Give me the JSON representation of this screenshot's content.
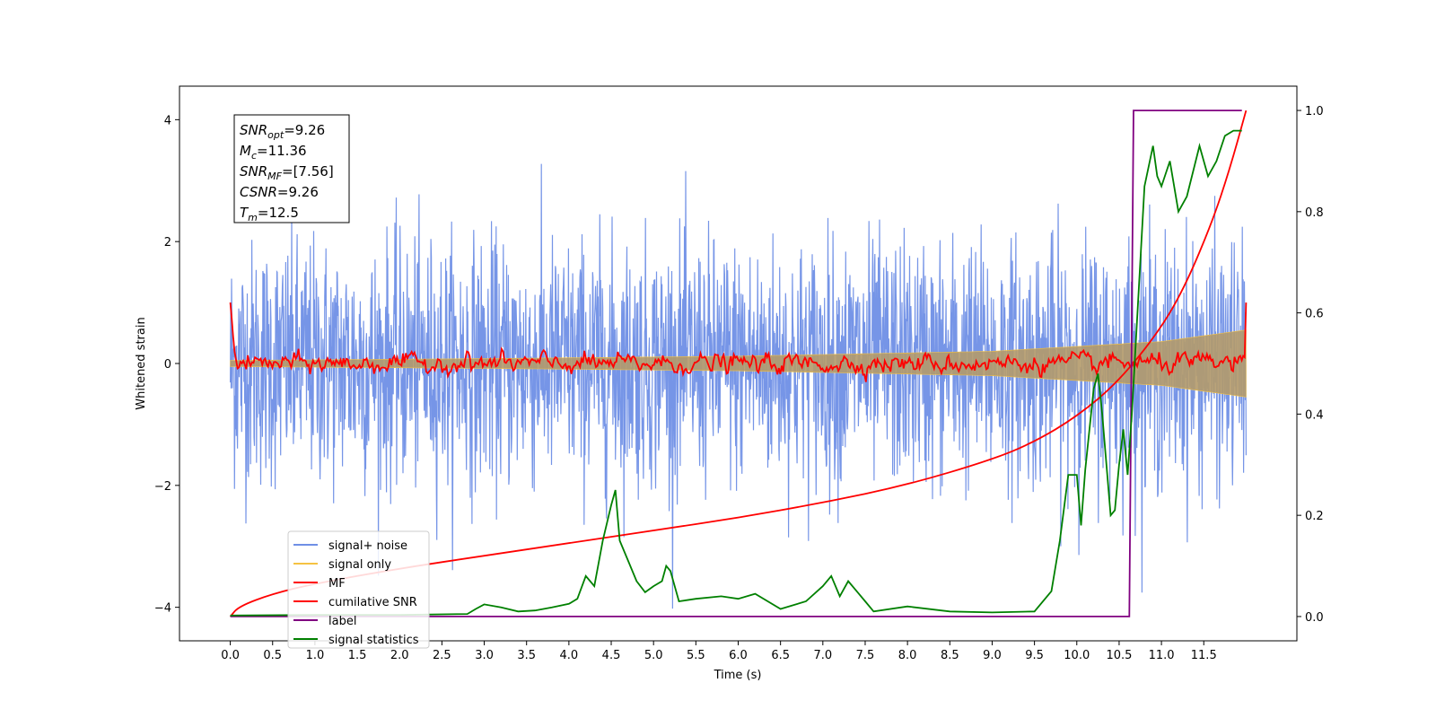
{
  "chart_data": {
    "type": "line",
    "title": "",
    "xlabel": "Time (s)",
    "ylabel": "Whitened strain",
    "y2label": "",
    "xlim": [
      -0.6,
      12.6
    ],
    "ylim": [
      -4.55,
      4.55
    ],
    "y2lim": [
      -0.048,
      1.048
    ],
    "xticks": [
      "0.0",
      "0.5",
      "1.0",
      "1.5",
      "2.0",
      "2.5",
      "3.0",
      "3.5",
      "4.0",
      "4.5",
      "5.0",
      "5.5",
      "6.0",
      "6.5",
      "7.0",
      "7.5",
      "8.0",
      "8.5",
      "9.0",
      "9.5",
      "10.0",
      "10.5",
      "11.0",
      "11.5"
    ],
    "yticks": [
      "−4",
      "−2",
      "0",
      "2",
      "4"
    ],
    "y2ticks": [
      "0.0",
      "0.2",
      "0.4",
      "0.6",
      "0.8",
      "1.0"
    ],
    "grid": false,
    "legend_position": "lower-left",
    "annotation": {
      "lines": [
        {
          "sym": "SNR",
          "sub": "opt",
          "val": "=9.26"
        },
        {
          "sym": "M",
          "sub": "c",
          "val": "=11.36"
        },
        {
          "sym": "SNR",
          "sub": "MF",
          "val": "=[7.56]"
        },
        {
          "sym": "CSNR",
          "sub": "",
          "val": "=9.26"
        },
        {
          "sym": "T",
          "sub": "m",
          "val": "=12.5"
        }
      ]
    },
    "series": [
      {
        "name": "signal+ noise",
        "color": "#6f8fe6",
        "axis": "left",
        "note_stats": {
          "mean": 0,
          "std": 1,
          "tmin": 0,
          "tmax": 12
        }
      },
      {
        "name": "signal only",
        "color": "#f5c242",
        "axis": "left",
        "envelope": {
          "t": [
            0,
            3,
            6,
            9,
            11,
            12
          ],
          "amp": [
            0.05,
            0.08,
            0.12,
            0.2,
            0.36,
            0.55
          ]
        }
      },
      {
        "name": "MF",
        "color": "#ff0000",
        "axis": "left",
        "start_value": 1.0,
        "end_value": 1.0
      },
      {
        "name": "cumilative SNR",
        "color": "#ff0000",
        "axis": "right",
        "x": [
          0.0,
          0.1,
          0.5,
          1.0,
          2.0,
          3.0,
          4.0,
          5.0,
          6.0,
          7.0,
          8.0,
          9.0,
          9.5,
          10.0,
          10.5,
          11.0,
          11.3,
          11.6,
          11.8,
          12.0
        ],
        "y": [
          0.0,
          0.02,
          0.045,
          0.065,
          0.095,
          0.12,
          0.145,
          0.17,
          0.195,
          0.225,
          0.26,
          0.31,
          0.345,
          0.395,
          0.465,
          0.57,
          0.66,
          0.78,
          0.88,
          1.0
        ]
      },
      {
        "name": "label",
        "color": "#800080",
        "axis": "right",
        "x": [
          0.0,
          10.62,
          10.67,
          11.95
        ],
        "y": [
          0.0,
          0.0,
          1.0,
          1.0
        ]
      },
      {
        "name": "signal statistics",
        "color": "#008000",
        "axis": "right",
        "x": [
          0.0,
          1.0,
          2.0,
          2.8,
          2.9,
          3.0,
          3.2,
          3.4,
          3.6,
          3.8,
          4.0,
          4.1,
          4.2,
          4.3,
          4.4,
          4.5,
          4.55,
          4.6,
          4.7,
          4.8,
          4.9,
          5.0,
          5.1,
          5.15,
          5.2,
          5.3,
          5.5,
          5.8,
          6.0,
          6.2,
          6.5,
          6.8,
          7.0,
          7.1,
          7.2,
          7.3,
          7.4,
          7.5,
          7.6,
          8.0,
          8.5,
          9.0,
          9.5,
          9.7,
          9.8,
          9.9,
          10.0,
          10.05,
          10.1,
          10.2,
          10.25,
          10.3,
          10.4,
          10.45,
          10.5,
          10.55,
          10.6,
          10.65,
          10.7,
          10.8,
          10.9,
          10.95,
          11.0,
          11.1,
          11.2,
          11.3,
          11.45,
          11.55,
          11.65,
          11.75,
          11.85,
          11.95
        ],
        "y": [
          0.002,
          0.003,
          0.003,
          0.005,
          0.015,
          0.024,
          0.018,
          0.01,
          0.012,
          0.018,
          0.025,
          0.035,
          0.08,
          0.06,
          0.15,
          0.22,
          0.25,
          0.15,
          0.11,
          0.07,
          0.048,
          0.06,
          0.07,
          0.1,
          0.09,
          0.03,
          0.035,
          0.04,
          0.035,
          0.045,
          0.015,
          0.03,
          0.06,
          0.08,
          0.04,
          0.07,
          0.05,
          0.03,
          0.01,
          0.02,
          0.01,
          0.008,
          0.01,
          0.05,
          0.15,
          0.28,
          0.28,
          0.18,
          0.29,
          0.45,
          0.48,
          0.4,
          0.2,
          0.21,
          0.3,
          0.37,
          0.28,
          0.4,
          0.55,
          0.85,
          0.93,
          0.87,
          0.85,
          0.9,
          0.8,
          0.83,
          0.93,
          0.87,
          0.9,
          0.95,
          0.96,
          0.96
        ]
      }
    ]
  }
}
